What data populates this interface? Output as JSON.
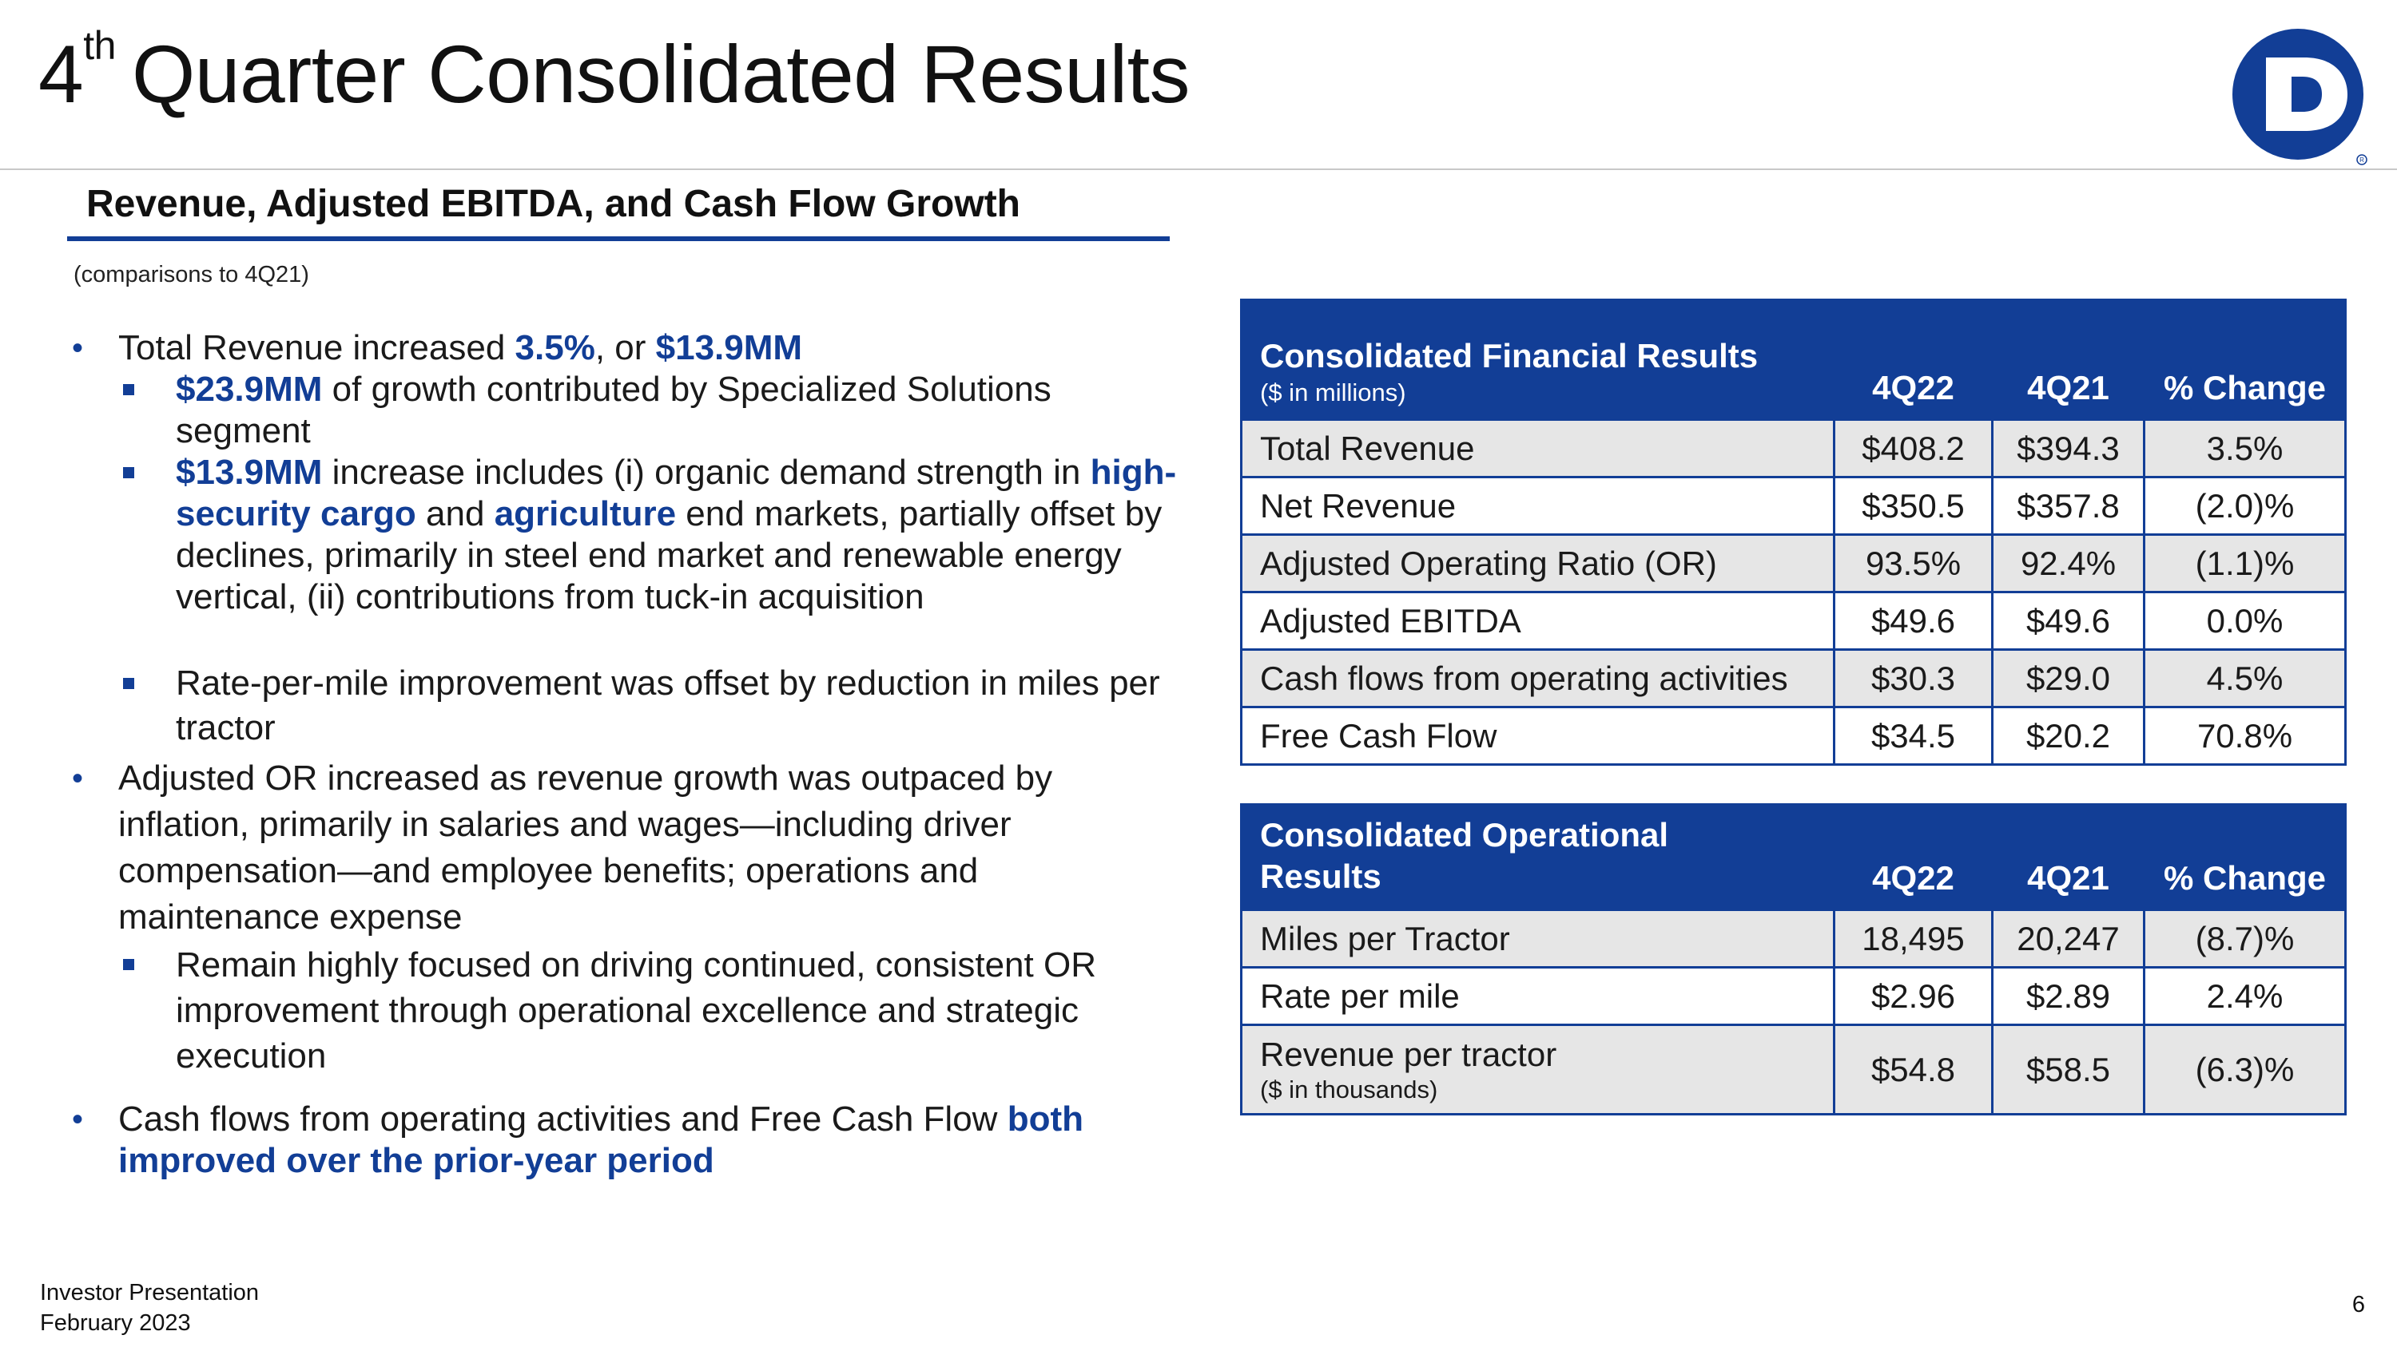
{
  "header": {
    "title_prefix": "4",
    "title_sup": "th",
    "title_rest": "Quarter Consolidated Results",
    "logo_icon": "company-d-logo-icon",
    "logo_color": "#123e96"
  },
  "section": {
    "title": "Revenue, Adjusted EBITDA, and Cash Flow Growth",
    "note": "(comparisons to 4Q21)"
  },
  "bullets": {
    "b1": {
      "t1": "Total Revenue increased ",
      "h1": "3.5%",
      "t2": ", or ",
      "h2": "$13.9MM"
    },
    "b1_1": {
      "h1": "$23.9MM",
      "t1": " of growth contributed by Specialized Solutions segment"
    },
    "b1_2": {
      "h1": "$13.9MM",
      "t1": " increase includes (i) organic demand strength in ",
      "h2": "high-security cargo",
      "t2": " and ",
      "h3": "agriculture",
      "t3": " end markets, partially offset by declines, primarily in steel end market and renewable energy vertical, (ii) contributions from tuck-in acquisition"
    },
    "b1_3": {
      "t1": "Rate-per-mile improvement was offset by reduction in miles per tractor"
    },
    "b2": {
      "t1": "Adjusted OR increased as revenue growth was outpaced by inflation, primarily in salaries and wages—including driver compensation—and employee benefits; operations and maintenance expense"
    },
    "b2_1": {
      "t1": "Remain highly focused on driving continued, consistent OR improvement through operational excellence and strategic execution"
    },
    "b3": {
      "t1": "Cash flows from operating activities and Free Cash Flow ",
      "h1": "both improved over the prior-year period"
    }
  },
  "financial_table": {
    "title": "Consolidated Financial Results",
    "subtitle": "($ in millions)",
    "col1": "4Q22",
    "col2": "4Q21",
    "col3": "% Change",
    "rows": [
      {
        "label": "Total Revenue",
        "c1": "$408.2",
        "c2": "$394.3",
        "c3": "3.5%"
      },
      {
        "label": "Net Revenue",
        "c1": "$350.5",
        "c2": "$357.8",
        "c3": "(2.0)%"
      },
      {
        "label": "Adjusted Operating Ratio (OR)",
        "c1": "93.5%",
        "c2": "92.4%",
        "c3": "(1.1)%"
      },
      {
        "label": "Adjusted EBITDA",
        "c1": "$49.6",
        "c2": "$49.6",
        "c3": "0.0%"
      },
      {
        "label": "Cash flows from operating activities",
        "c1": "$30.3",
        "c2": "$29.0",
        "c3": "4.5%"
      },
      {
        "label": "Free Cash Flow",
        "c1": "$34.5",
        "c2": "$20.2",
        "c3": "70.8%"
      }
    ]
  },
  "operational_table": {
    "title": "Consolidated Operational Results",
    "col1": "4Q22",
    "col2": "4Q21",
    "col3": "% Change",
    "rows": [
      {
        "label": "Miles per Tractor",
        "c1": "18,495",
        "c2": "20,247",
        "c3": "(8.7)%"
      },
      {
        "label": "Rate per mile",
        "c1": "$2.96",
        "c2": "$2.89",
        "c3": "2.4%"
      },
      {
        "label": "Revenue per tractor",
        "sublabel": "($ in thousands)",
        "c1": "$54.8",
        "c2": "$58.5",
        "c3": "(6.3)%"
      }
    ]
  },
  "footer": {
    "line1": "Investor Presentation",
    "line2": "February 2023",
    "page": "6"
  }
}
